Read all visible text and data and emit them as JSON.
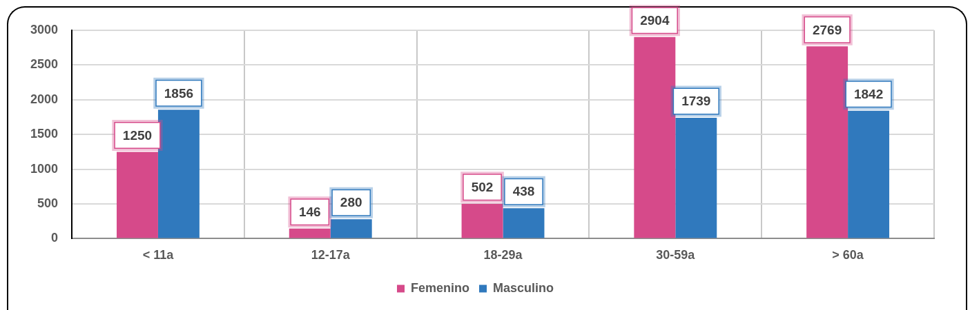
{
  "chart_data": {
    "type": "bar",
    "categories": [
      "< 11a",
      "12-17a",
      "18-29a",
      "30-59a",
      "> 60a"
    ],
    "series": [
      {
        "name": "Femenino",
        "color": "#d64a8a",
        "values": [
          1250,
          146,
          502,
          2904,
          2769
        ]
      },
      {
        "name": "Masculino",
        "color": "#3079bd",
        "values": [
          1856,
          280,
          438,
          1739,
          1842
        ]
      }
    ],
    "ylim": [
      0,
      3000
    ],
    "yticks": [
      0,
      500,
      1000,
      1500,
      2000,
      2500,
      3000
    ],
    "grid": true,
    "legend": "bottom",
    "data_labels": true
  }
}
